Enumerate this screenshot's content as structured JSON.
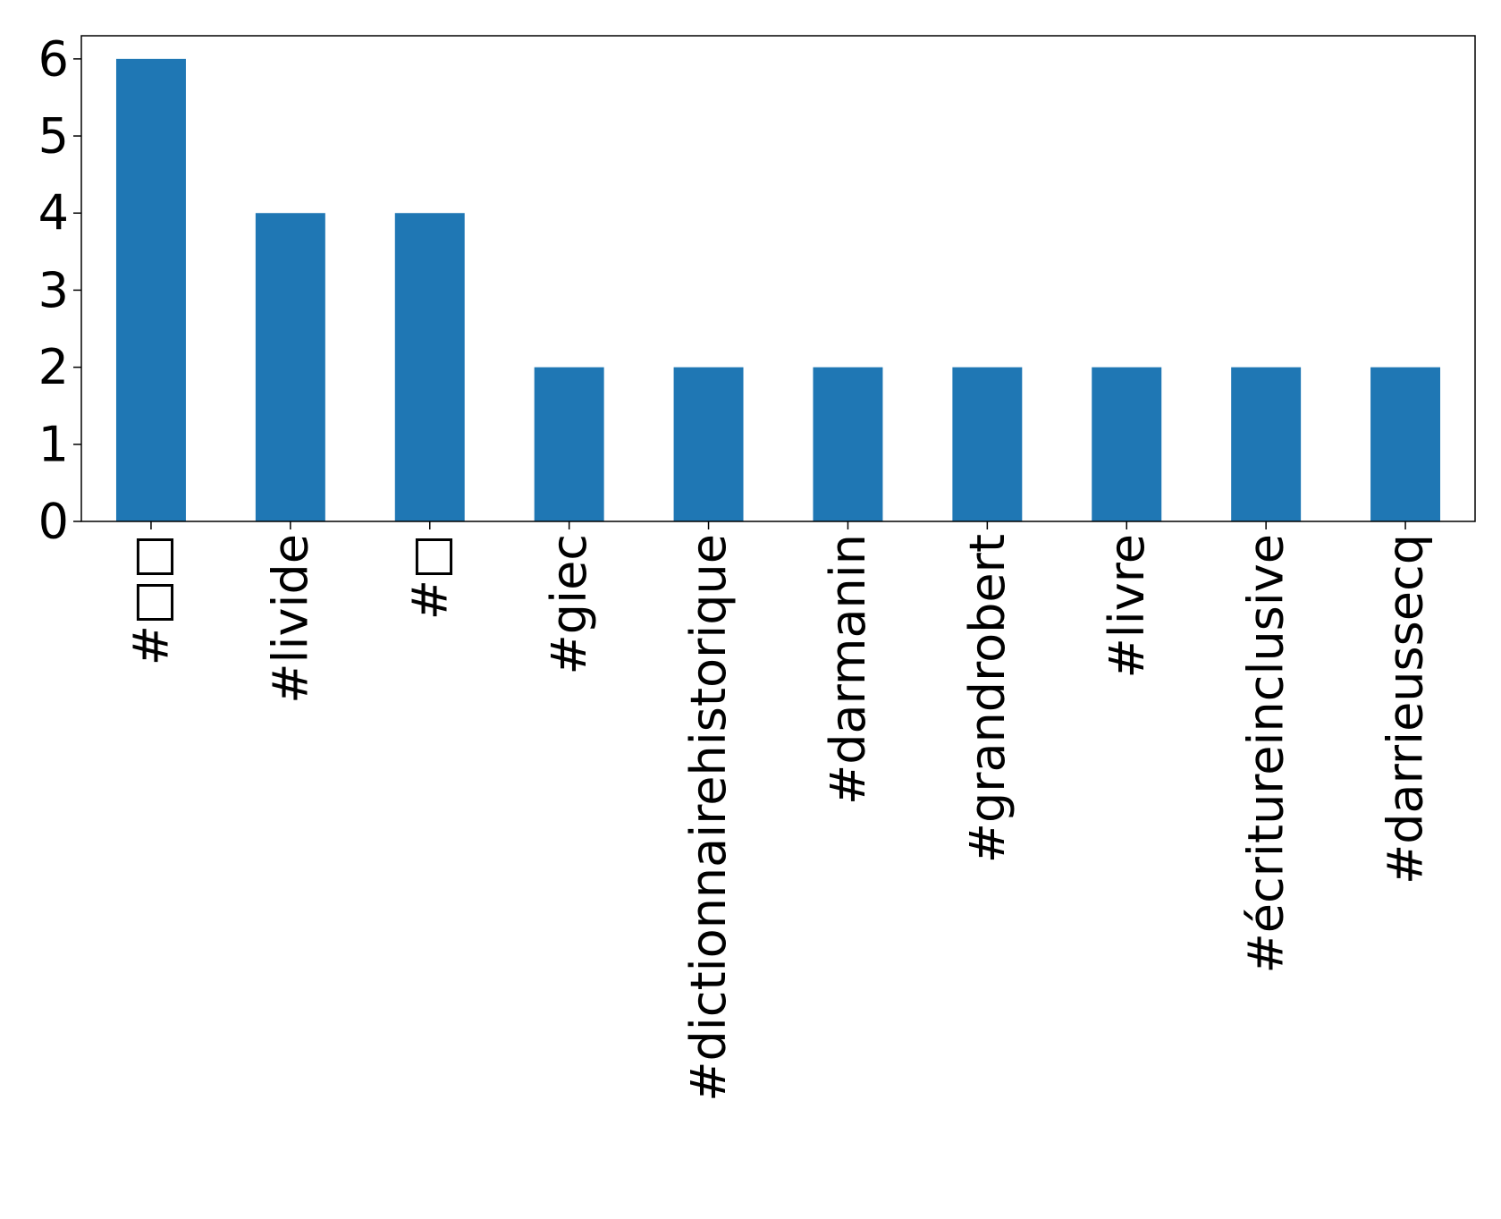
{
  "chart_data": {
    "type": "bar",
    "title": "",
    "xlabel": "",
    "ylabel": "",
    "categories": [
      "#□□",
      "#livide",
      "#□",
      "#giec",
      "#dictionnairehistorique",
      "#darmanin",
      "#grandrobert",
      "#livre",
      "#écritureinclusive",
      "#darrieussecq"
    ],
    "values": [
      6,
      4,
      4,
      2,
      2,
      2,
      2,
      2,
      2,
      2
    ],
    "ylim": [
      0,
      6.3
    ],
    "yticks": [
      0,
      1,
      2,
      3,
      4,
      5,
      6
    ],
    "grid": false,
    "legend": "none",
    "bar_color": "#1f77b4"
  }
}
